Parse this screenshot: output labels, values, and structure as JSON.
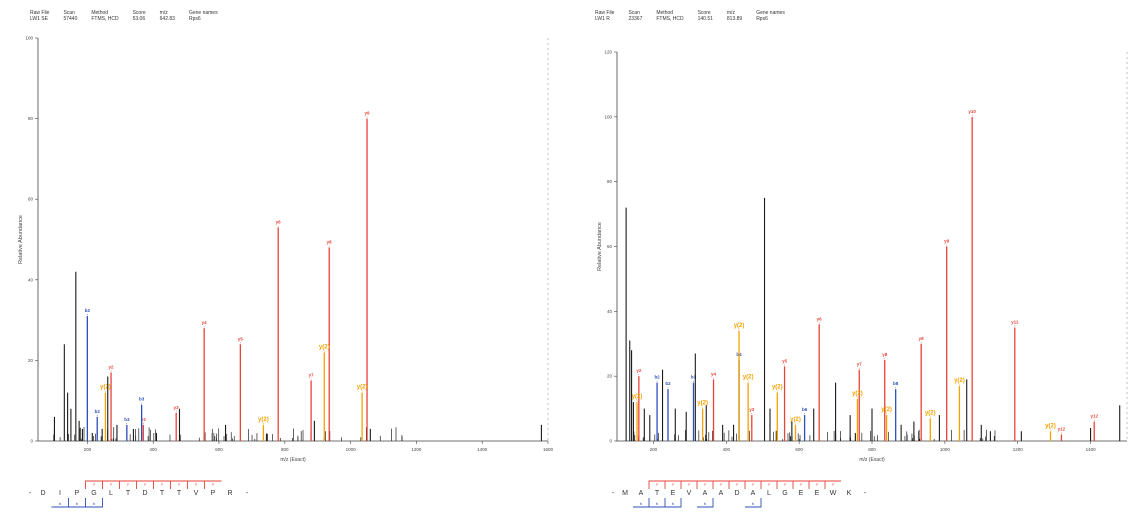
{
  "chart_data": [
    {
      "type": "bar",
      "header": [
        {
          "label": "Raw File",
          "value": "LW1 SE"
        },
        {
          "label": "Scan",
          "value": "57440"
        },
        {
          "label": "Method",
          "value": "FTMS, HCD"
        },
        {
          "label": "Score",
          "value": "53.06"
        },
        {
          "label": "m/z",
          "value": "642.83"
        },
        {
          "label": "Gene names",
          "value": "Rps6"
        }
      ],
      "xlabel": "m/z (Exact)",
      "ylabel": "Relative Abundance",
      "xlim": [
        50,
        1600
      ],
      "ylim": [
        0,
        100
      ],
      "xticks": [
        200,
        400,
        600,
        800,
        1000,
        1200,
        1400,
        1600
      ],
      "yticks": [
        0,
        20,
        40,
        60,
        80,
        100
      ],
      "peaks": [
        {
          "x": 555,
          "y": 28,
          "type": "y",
          "label": "y4"
        },
        {
          "x": 665,
          "y": 24,
          "type": "y",
          "label": "y5"
        },
        {
          "x": 780,
          "y": 53,
          "type": "y",
          "label": "y6"
        },
        {
          "x": 880,
          "y": 15,
          "type": "y",
          "label": "y7"
        },
        {
          "x": 935,
          "y": 48,
          "type": "y",
          "label": "y8"
        },
        {
          "x": 1050,
          "y": 80,
          "type": "y",
          "label": "y9"
        },
        {
          "x": 272,
          "y": 17,
          "type": "y",
          "label": "y2"
        },
        {
          "x": 370,
          "y": 4,
          "type": "y",
          "label": "y3"
        },
        {
          "x": 470,
          "y": 7,
          "type": "y",
          "label": "y3"
        },
        {
          "x": 200,
          "y": 31,
          "type": "b",
          "label": "b2"
        },
        {
          "x": 320,
          "y": 4,
          "type": "b",
          "label": "b3"
        },
        {
          "x": 365,
          "y": 9,
          "type": "b",
          "label": "b3"
        },
        {
          "x": 230,
          "y": 6,
          "type": "b",
          "label": "b2"
        },
        {
          "x": 255,
          "y": 12,
          "type": "z",
          "label": "y(2)"
        },
        {
          "x": 735,
          "y": 4,
          "type": "z",
          "label": "y(2)"
        },
        {
          "x": 920,
          "y": 22,
          "type": "z",
          "label": "y(2)"
        },
        {
          "x": 1035,
          "y": 12,
          "type": "z",
          "label": "y(2)"
        },
        {
          "x": 165,
          "y": 42,
          "type": "n",
          "label": ""
        },
        {
          "x": 130,
          "y": 24,
          "type": "n",
          "label": ""
        },
        {
          "x": 100,
          "y": 6,
          "type": "n",
          "label": ""
        },
        {
          "x": 140,
          "y": 12,
          "type": "n",
          "label": ""
        },
        {
          "x": 150,
          "y": 8,
          "type": "n",
          "label": ""
        },
        {
          "x": 175,
          "y": 5,
          "type": "n",
          "label": ""
        },
        {
          "x": 185,
          "y": 3,
          "type": "n",
          "label": ""
        },
        {
          "x": 215,
          "y": 2,
          "type": "n",
          "label": ""
        },
        {
          "x": 245,
          "y": 3,
          "type": "n",
          "label": ""
        },
        {
          "x": 262,
          "y": 16,
          "type": "n",
          "label": ""
        },
        {
          "x": 290,
          "y": 4,
          "type": "n",
          "label": ""
        },
        {
          "x": 340,
          "y": 3,
          "type": "n",
          "label": ""
        },
        {
          "x": 410,
          "y": 2,
          "type": "n",
          "label": ""
        },
        {
          "x": 480,
          "y": 8,
          "type": "n",
          "label": ""
        },
        {
          "x": 620,
          "y": 4,
          "type": "n",
          "label": ""
        },
        {
          "x": 890,
          "y": 5,
          "type": "n",
          "label": ""
        },
        {
          "x": 1060,
          "y": 3,
          "type": "n",
          "label": ""
        },
        {
          "x": 1580,
          "y": 4,
          "type": "n",
          "label": ""
        }
      ],
      "sequence": [
        "D",
        "I",
        "P",
        "G",
        "L",
        "T",
        "D",
        "T",
        "T",
        "V",
        "P",
        "R"
      ],
      "y_ion_positions": [
        3,
        4,
        5,
        6,
        7,
        8,
        9,
        10
      ],
      "b_ion_positions": [
        1,
        2,
        3
      ]
    },
    {
      "type": "bar",
      "header": [
        {
          "label": "Raw File",
          "value": "LW1 R"
        },
        {
          "label": "Scan",
          "value": "23367"
        },
        {
          "label": "Method",
          "value": "FTMS, HCD"
        },
        {
          "label": "Score",
          "value": "140.51"
        },
        {
          "label": "m/z",
          "value": "813.89"
        },
        {
          "label": "Gene names",
          "value": "Rps6"
        }
      ],
      "xlabel": "m/z (Exact)",
      "ylabel": "Relative Abundance",
      "xlim": [
        100,
        1500
      ],
      "ylim": [
        0,
        120
      ],
      "xticks": [
        200,
        400,
        600,
        800,
        1000,
        1200,
        1400
      ],
      "yticks": [
        0,
        20,
        40,
        60,
        80,
        100,
        120
      ],
      "peaks": [
        {
          "x": 1075,
          "y": 100,
          "type": "y",
          "label": "y10"
        },
        {
          "x": 1005,
          "y": 60,
          "type": "y",
          "label": "y9"
        },
        {
          "x": 1192,
          "y": 35,
          "type": "y",
          "label": "y11"
        },
        {
          "x": 655,
          "y": 36,
          "type": "y",
          "label": "y6"
        },
        {
          "x": 765,
          "y": 22,
          "type": "y",
          "label": "y7"
        },
        {
          "x": 835,
          "y": 25,
          "type": "y",
          "label": "y8"
        },
        {
          "x": 935,
          "y": 30,
          "type": "y",
          "label": "y8"
        },
        {
          "x": 560,
          "y": 23,
          "type": "y",
          "label": "y5"
        },
        {
          "x": 365,
          "y": 19,
          "type": "y",
          "label": "y4"
        },
        {
          "x": 160,
          "y": 20,
          "type": "y",
          "label": "y2"
        },
        {
          "x": 470,
          "y": 8,
          "type": "y",
          "label": "y3"
        },
        {
          "x": 1410,
          "y": 6,
          "type": "y",
          "label": "y12"
        },
        {
          "x": 1320,
          "y": 2,
          "type": "y",
          "label": "y12"
        },
        {
          "x": 240,
          "y": 16,
          "type": "b",
          "label": "b2"
        },
        {
          "x": 310,
          "y": 18,
          "type": "b",
          "label": "b3"
        },
        {
          "x": 435,
          "y": 25,
          "type": "b",
          "label": "b4"
        },
        {
          "x": 615,
          "y": 8,
          "type": "b",
          "label": "b6"
        },
        {
          "x": 865,
          "y": 16,
          "type": "b",
          "label": "b8"
        },
        {
          "x": 210,
          "y": 18,
          "type": "b",
          "label": "b2"
        },
        {
          "x": 155,
          "y": 12,
          "type": "z",
          "label": "y(2)"
        },
        {
          "x": 335,
          "y": 10,
          "type": "z",
          "label": "y(2)"
        },
        {
          "x": 435,
          "y": 34,
          "type": "z",
          "label": "y(2)"
        },
        {
          "x": 460,
          "y": 18,
          "type": "z",
          "label": "y(2)"
        },
        {
          "x": 540,
          "y": 15,
          "type": "z",
          "label": "y(2)"
        },
        {
          "x": 590,
          "y": 5,
          "type": "z",
          "label": "y(2)"
        },
        {
          "x": 760,
          "y": 13,
          "type": "z",
          "label": "y(2)"
        },
        {
          "x": 840,
          "y": 8,
          "type": "z",
          "label": "y(2)"
        },
        {
          "x": 960,
          "y": 7,
          "type": "z",
          "label": "y(2)"
        },
        {
          "x": 1040,
          "y": 17,
          "type": "z",
          "label": "y(2)"
        },
        {
          "x": 1290,
          "y": 3,
          "type": "z",
          "label": "y(2)"
        },
        {
          "x": 505,
          "y": 75,
          "type": "n",
          "label": ""
        },
        {
          "x": 125,
          "y": 72,
          "type": "n",
          "label": ""
        },
        {
          "x": 135,
          "y": 31,
          "type": "n",
          "label": ""
        },
        {
          "x": 140,
          "y": 28,
          "type": "n",
          "label": ""
        },
        {
          "x": 145,
          "y": 12,
          "type": "n",
          "label": ""
        },
        {
          "x": 175,
          "y": 10,
          "type": "n",
          "label": ""
        },
        {
          "x": 190,
          "y": 8,
          "type": "n",
          "label": ""
        },
        {
          "x": 225,
          "y": 22,
          "type": "n",
          "label": ""
        },
        {
          "x": 260,
          "y": 10,
          "type": "n",
          "label": ""
        },
        {
          "x": 290,
          "y": 9,
          "type": "n",
          "label": ""
        },
        {
          "x": 315,
          "y": 27,
          "type": "n",
          "label": ""
        },
        {
          "x": 345,
          "y": 11,
          "type": "n",
          "label": ""
        },
        {
          "x": 390,
          "y": 5,
          "type": "n",
          "label": ""
        },
        {
          "x": 420,
          "y": 5,
          "type": "n",
          "label": ""
        },
        {
          "x": 520,
          "y": 10,
          "type": "n",
          "label": ""
        },
        {
          "x": 580,
          "y": 6,
          "type": "n",
          "label": ""
        },
        {
          "x": 640,
          "y": 10,
          "type": "n",
          "label": ""
        },
        {
          "x": 700,
          "y": 18,
          "type": "n",
          "label": ""
        },
        {
          "x": 740,
          "y": 8,
          "type": "n",
          "label": ""
        },
        {
          "x": 800,
          "y": 10,
          "type": "n",
          "label": ""
        },
        {
          "x": 880,
          "y": 5,
          "type": "n",
          "label": ""
        },
        {
          "x": 915,
          "y": 6,
          "type": "n",
          "label": ""
        },
        {
          "x": 985,
          "y": 8,
          "type": "n",
          "label": ""
        },
        {
          "x": 1060,
          "y": 19,
          "type": "n",
          "label": ""
        },
        {
          "x": 1100,
          "y": 5,
          "type": "n",
          "label": ""
        },
        {
          "x": 1125,
          "y": 3,
          "type": "n",
          "label": ""
        },
        {
          "x": 1210,
          "y": 3,
          "type": "n",
          "label": ""
        },
        {
          "x": 1400,
          "y": 4,
          "type": "n",
          "label": ""
        },
        {
          "x": 1480,
          "y": 11,
          "type": "n",
          "label": ""
        }
      ],
      "sequence": [
        "M",
        "A",
        "T",
        "E",
        "V",
        "A",
        "A",
        "D",
        "A",
        "L",
        "G",
        "E",
        "E",
        "W",
        "K"
      ],
      "y_ion_positions": [
        2,
        3,
        4,
        5,
        6,
        7,
        8,
        9,
        10,
        11,
        12,
        13
      ],
      "b_ion_positions": [
        1,
        2,
        3,
        5,
        8
      ]
    }
  ],
  "colors": {
    "y_ion": "#e8433a",
    "b_ion": "#2c4fb8",
    "y2_ion": "#f5a100",
    "other": "#1a1a1a",
    "light_b": "#6aaee8"
  }
}
